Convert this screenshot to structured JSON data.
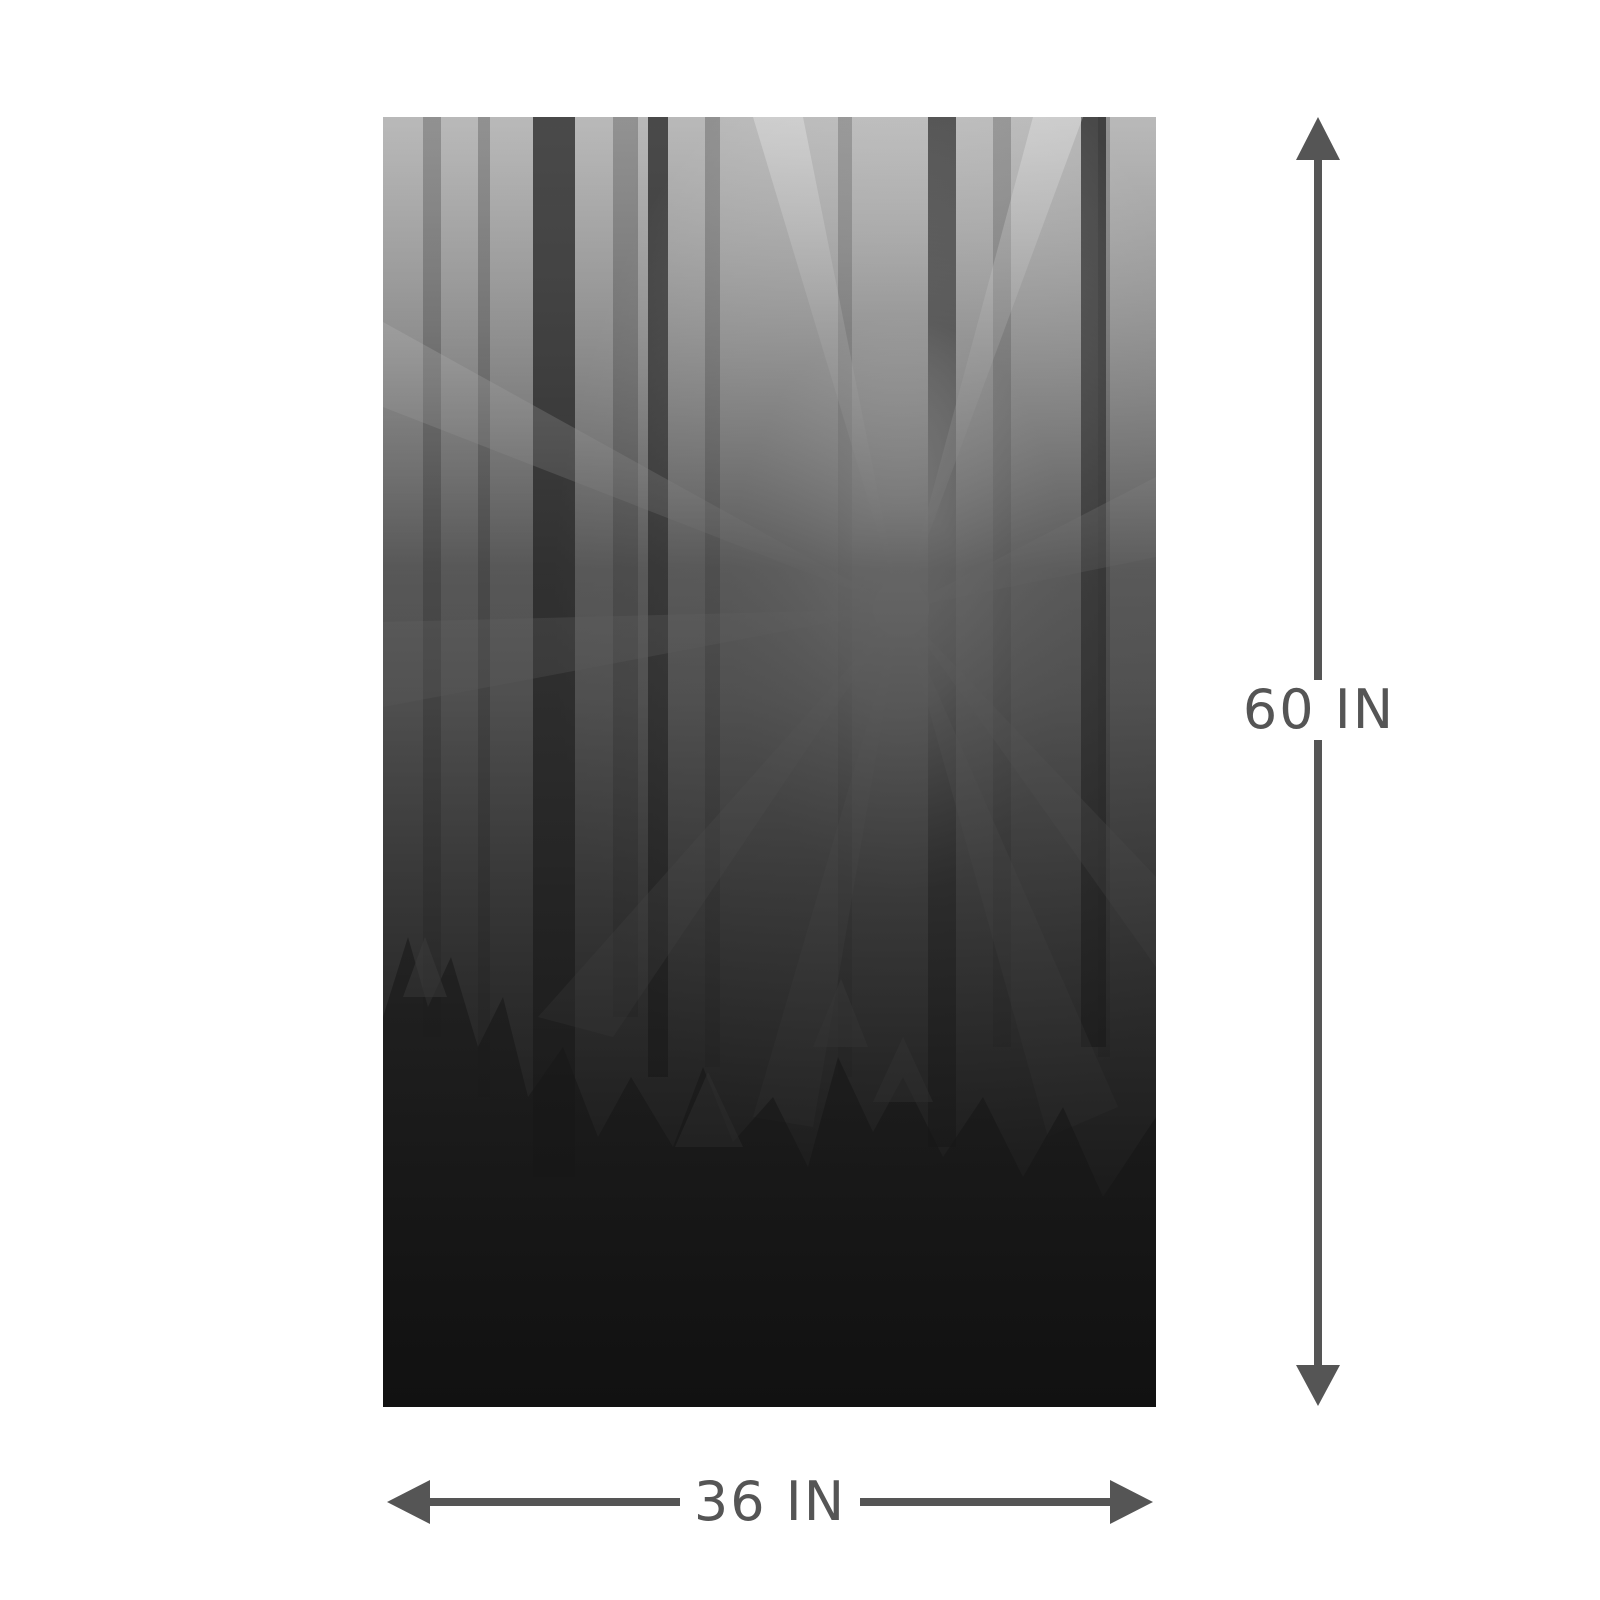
{
  "product": {
    "image_icon": "forest-sunbeam-photo",
    "colors": {
      "dimension_arrow": "#555555",
      "background": "#ffffff"
    }
  },
  "dimensions": {
    "height_label": "60 IN",
    "width_label": "36 IN"
  }
}
